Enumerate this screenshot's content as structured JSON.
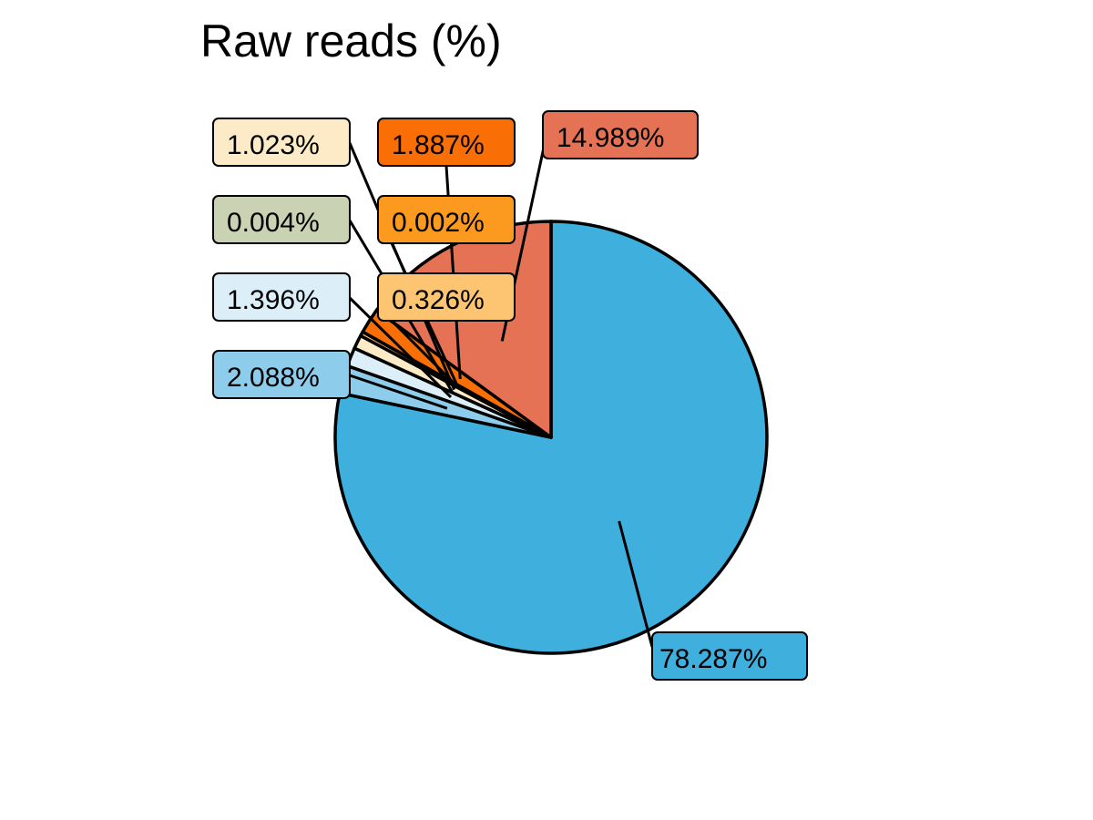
{
  "chart_data": {
    "type": "pie",
    "title": "Raw reads (%)",
    "slices": [
      {
        "value": 78.287,
        "label": "78.287%",
        "color": "#3FAFDE"
      },
      {
        "value": 2.088,
        "label": "2.088%",
        "color": "#8DCDEB"
      },
      {
        "value": 1.396,
        "label": "1.396%",
        "color": "#DCEFF9"
      },
      {
        "value": 0.004,
        "label": "0.004%",
        "color": "#C9D3B3"
      },
      {
        "value": 1.023,
        "label": "1.023%",
        "color": "#FCEBC6"
      },
      {
        "value": 0.326,
        "label": "0.326%",
        "color": "#FDC572"
      },
      {
        "value": 0.002,
        "label": "0.002%",
        "color": "#FB9A1E"
      },
      {
        "value": 1.887,
        "label": "1.887%",
        "color": "#FA6E06"
      },
      {
        "value": 14.989,
        "label": "14.989%",
        "color": "#E57254"
      }
    ],
    "start_angle": "12 o'clock",
    "direction": "clockwise",
    "legend": "none"
  }
}
